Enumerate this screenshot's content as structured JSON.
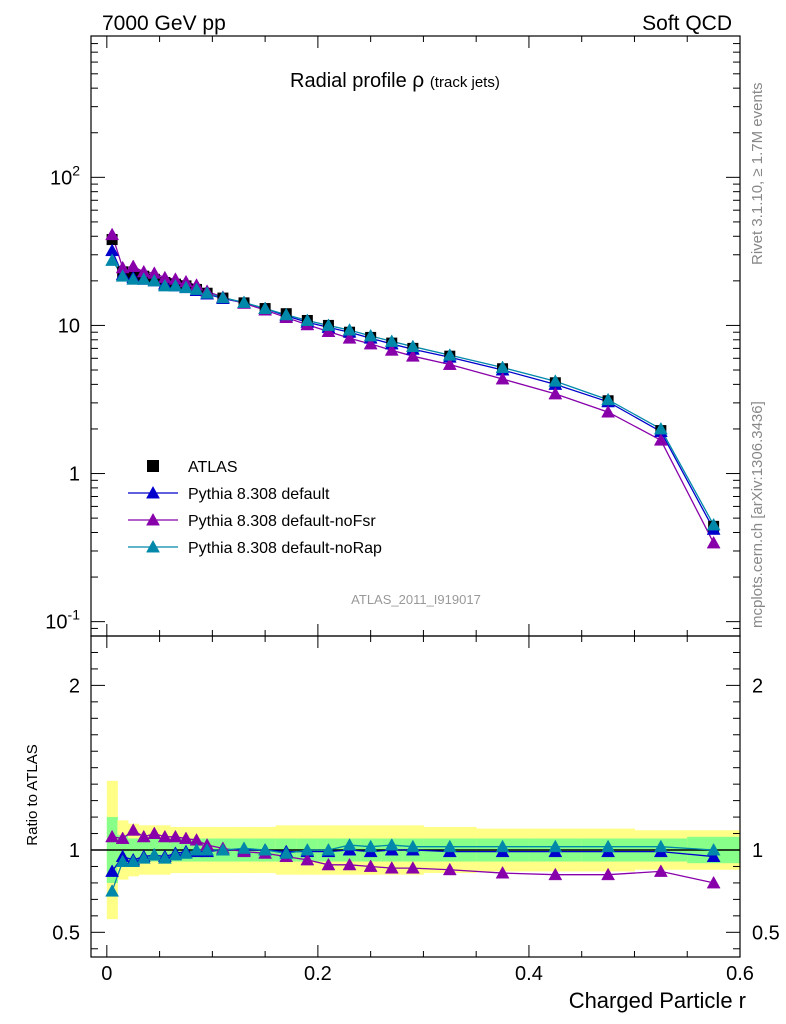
{
  "header": {
    "left": "7000 GeV pp",
    "right": "Soft QCD"
  },
  "side_labels": {
    "rivet": "Rivet 3.1.10, ≥ 1.7M events",
    "mcplots": "mcplots.cern.ch [arXiv:1306.3436]"
  },
  "chart_data": [
    {
      "type": "scatter",
      "panel": "main",
      "title": "Radial profile",
      "title_symbol": "ρ",
      "title_suffix": "(track jets)",
      "analysis_id": "ATLAS_2011_I919017",
      "yscale": "log",
      "ylim": [
        0.08,
        900
      ],
      "xlim": [
        -0.015,
        0.6
      ],
      "ytick_labels": [
        "10^-1",
        "1",
        "10",
        "10^2"
      ],
      "legend_position": "lower-left",
      "x": [
        0.005,
        0.015,
        0.025,
        0.035,
        0.045,
        0.055,
        0.065,
        0.075,
        0.085,
        0.095,
        0.11,
        0.13,
        0.15,
        0.17,
        0.19,
        0.21,
        0.23,
        0.25,
        0.27,
        0.29,
        0.325,
        0.375,
        0.425,
        0.475,
        0.525,
        0.575
      ],
      "series": [
        {
          "name": "ATLAS",
          "color": "#000000",
          "marker": "square",
          "values": [
            38,
            23,
            22,
            21.5,
            20.5,
            19.5,
            19,
            18.5,
            17.5,
            16.5,
            15.3,
            14.2,
            13,
            12,
            10.8,
            10,
            9,
            8.3,
            7.6,
            7,
            6.2,
            5.1,
            4.1,
            3.1,
            1.95,
            0.44
          ]
        },
        {
          "name": "Pythia 8.308 default",
          "color": "#0000cc",
          "marker": "triangle",
          "values": [
            32,
            22,
            21,
            20.5,
            20,
            19,
            18.5,
            18,
            17.2,
            16.3,
            15.2,
            14.2,
            13,
            11.6,
            10.5,
            9.7,
            9,
            8.2,
            7.5,
            6.9,
            6.1,
            5.0,
            4.0,
            3.05,
            1.92,
            0.42
          ]
        },
        {
          "name": "Pythia 8.308 default-noFsr",
          "color": "#8800aa",
          "marker": "triangle",
          "values": [
            41,
            24.5,
            25,
            23,
            22.5,
            21,
            20.5,
            19.7,
            18.7,
            17,
            15.5,
            14.1,
            12.7,
            11.3,
            10.1,
            9.1,
            8.2,
            7.5,
            6.8,
            6.2,
            5.45,
            4.35,
            3.45,
            2.6,
            1.68,
            0.34
          ]
        },
        {
          "name": "Pythia 8.308 default-noRap",
          "color": "#0088aa",
          "marker": "triangle",
          "values": [
            27.5,
            21.5,
            20.5,
            20.5,
            20,
            18.5,
            18.5,
            18,
            17.5,
            16.5,
            15.4,
            14.3,
            13,
            11.8,
            10.8,
            10,
            9.3,
            8.5,
            7.8,
            7.2,
            6.3,
            5.2,
            4.2,
            3.15,
            2.0,
            0.45
          ]
        }
      ]
    },
    {
      "type": "scatter",
      "panel": "ratio",
      "ylabel": "Ratio to ATLAS",
      "xlabel": "Charged Particle r",
      "ylim": [
        0.35,
        2.3
      ],
      "xlim": [
        -0.015,
        0.6
      ],
      "ytick_labels": [
        "0.5",
        "1",
        "2"
      ],
      "xtick_labels": [
        "0",
        "0.2",
        "0.4",
        "0.6"
      ],
      "x": [
        0.005,
        0.015,
        0.025,
        0.035,
        0.045,
        0.055,
        0.065,
        0.075,
        0.085,
        0.095,
        0.11,
        0.13,
        0.15,
        0.17,
        0.19,
        0.21,
        0.23,
        0.25,
        0.27,
        0.29,
        0.325,
        0.375,
        0.425,
        0.475,
        0.525,
        0.575
      ],
      "bin_edges": [
        0,
        0.01,
        0.02,
        0.03,
        0.04,
        0.05,
        0.06,
        0.07,
        0.08,
        0.09,
        0.1,
        0.12,
        0.14,
        0.16,
        0.18,
        0.2,
        0.22,
        0.24,
        0.26,
        0.28,
        0.3,
        0.35,
        0.4,
        0.45,
        0.5,
        0.55,
        0.6
      ],
      "bands": {
        "green_half_width": [
          0.2,
          0.09,
          0.07,
          0.07,
          0.07,
          0.07,
          0.07,
          0.07,
          0.07,
          0.07,
          0.07,
          0.07,
          0.07,
          0.07,
          0.07,
          0.07,
          0.07,
          0.07,
          0.07,
          0.07,
          0.07,
          0.07,
          0.07,
          0.07,
          0.07,
          0.08
        ],
        "yellow_half_width": [
          0.42,
          0.18,
          0.16,
          0.15,
          0.15,
          0.15,
          0.14,
          0.14,
          0.14,
          0.14,
          0.14,
          0.14,
          0.14,
          0.15,
          0.15,
          0.15,
          0.15,
          0.15,
          0.15,
          0.15,
          0.14,
          0.13,
          0.13,
          0.13,
          0.12,
          0.12
        ],
        "green_color": "#88ff88",
        "yellow_color": "#ffff88"
      },
      "series": [
        {
          "name": "Pythia 8.308 default",
          "color": "#0000cc",
          "values": [
            0.87,
            0.96,
            0.94,
            0.96,
            0.97,
            0.96,
            0.98,
            0.99,
            0.99,
            0.99,
            1.0,
            1.0,
            1.0,
            0.99,
            0.99,
            0.99,
            1.0,
            0.99,
            1.0,
            1.0,
            0.99,
            0.99,
            0.99,
            0.99,
            0.99,
            0.96
          ]
        },
        {
          "name": "Pythia 8.308 default-noFsr",
          "color": "#8800aa",
          "values": [
            1.08,
            1.07,
            1.12,
            1.08,
            1.1,
            1.08,
            1.08,
            1.07,
            1.06,
            1.03,
            1.01,
            0.99,
            0.98,
            0.96,
            0.94,
            0.91,
            0.91,
            0.9,
            0.89,
            0.89,
            0.88,
            0.86,
            0.85,
            0.85,
            0.87,
            0.8
          ]
        },
        {
          "name": "Pythia 8.308 default-noRap",
          "color": "#0088aa",
          "values": [
            0.75,
            0.93,
            0.93,
            0.95,
            0.97,
            0.95,
            0.97,
            0.98,
            1.0,
            1.0,
            1.0,
            1.01,
            1.0,
            0.98,
            1.0,
            1.0,
            1.03,
            1.02,
            1.03,
            1.02,
            1.02,
            1.02,
            1.02,
            1.02,
            1.02,
            1.0
          ]
        }
      ]
    }
  ]
}
